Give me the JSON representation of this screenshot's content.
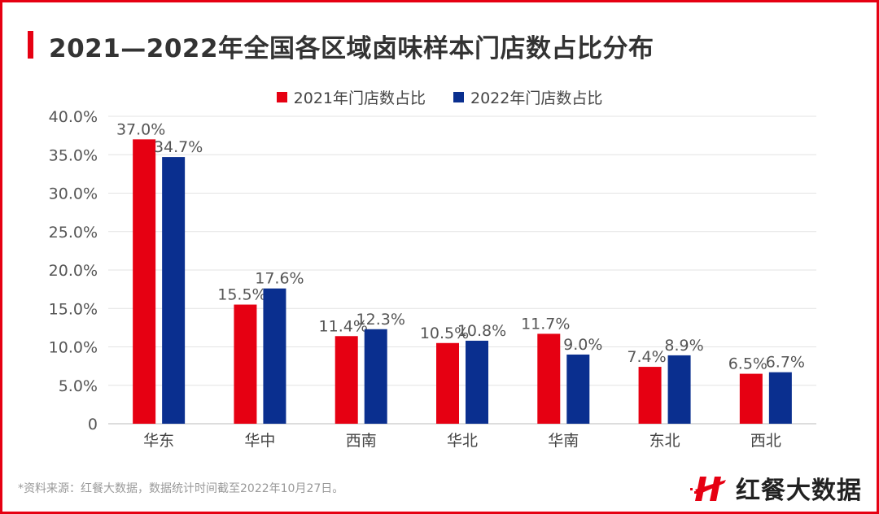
{
  "title": "2021—2022年全国各区域卤味样本门店数占比分布",
  "footer": "*资料来源：红餐大数据，数据统计时间截至2022年10月27日。",
  "logo": "红餐大数据",
  "colors": {
    "accent": "#e60012",
    "series_2021": "#e60012",
    "series_2022": "#0a2f8f"
  },
  "chart_data": {
    "type": "bar",
    "categories": [
      "华东",
      "华中",
      "西南",
      "华北",
      "华南",
      "东北",
      "西北"
    ],
    "series": [
      {
        "name": "2021年门店数占比",
        "values": [
          37.0,
          15.5,
          11.4,
          10.5,
          11.7,
          7.4,
          6.5
        ]
      },
      {
        "name": "2022年门店数占比",
        "values": [
          34.7,
          17.6,
          12.3,
          10.8,
          9.0,
          8.9,
          6.7
        ]
      }
    ],
    "yticks": [
      "0",
      "5.0%",
      "10.0%",
      "15.0%",
      "20.0%",
      "25.0%",
      "30.0%",
      "35.0%",
      "40.0%"
    ],
    "ylim": [
      0,
      40
    ],
    "grid": true,
    "legend": "top"
  }
}
